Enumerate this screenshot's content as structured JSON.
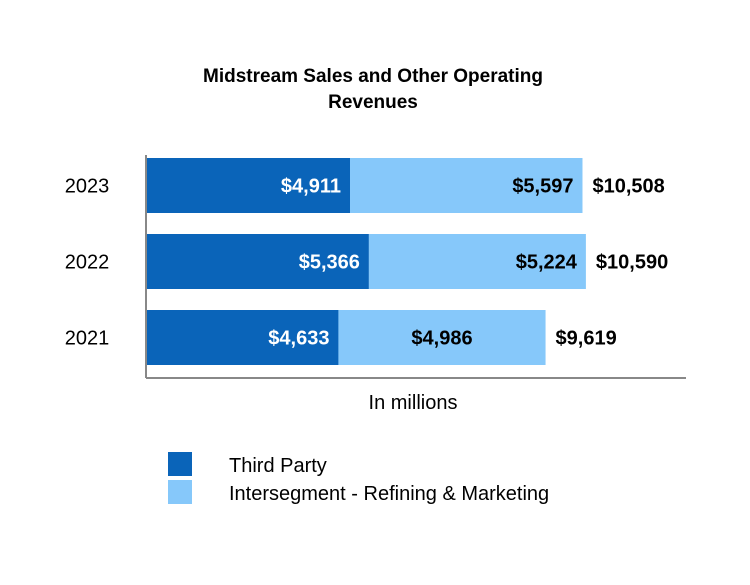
{
  "chart_data": {
    "type": "bar",
    "orientation": "horizontal",
    "stacked": true,
    "title": "Midstream Sales and Other Operating Revenues",
    "xlabel": "In millions",
    "ylabel": "",
    "categories": [
      "2023",
      "2022",
      "2021"
    ],
    "series": [
      {
        "name": "Third Party",
        "values": [
          4911,
          5366,
          4633
        ],
        "labels": [
          "$4,911",
          "$5,366",
          "$4,633"
        ],
        "color": "#0a64b9"
      },
      {
        "name": "Intersegment - Refining & Marketing",
        "values": [
          5597,
          5224,
          4986
        ],
        "labels": [
          "$5,597",
          "$5,224",
          "$4,986"
        ],
        "color": "#86c8fa"
      }
    ],
    "totals": [
      "$10,508",
      "$10,590",
      "$9,619"
    ],
    "xlim": [
      0,
      13000
    ],
    "grid": false,
    "legend": "bottom"
  }
}
